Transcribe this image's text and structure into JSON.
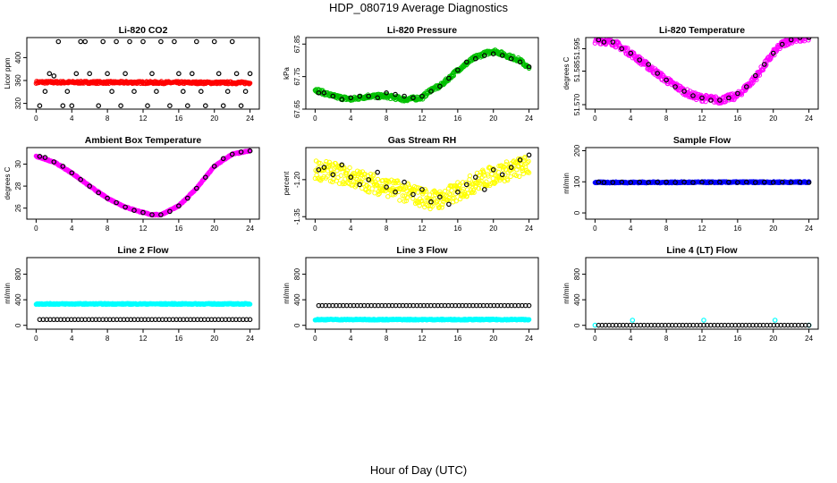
{
  "title": "HDP_080719  Average Diagnostics",
  "xlabel": "Hour of Day (UTC)",
  "x_ticks": [
    "0",
    "4",
    "8",
    "12",
    "16",
    "20",
    "24"
  ],
  "colors": {
    "primary_points": "#000000",
    "co2": "#ff0000",
    "pressure": "#00c000",
    "li820_temp": "#ff00ff",
    "box_temp": "#ff00ff",
    "rh": "#ffff00",
    "sample_flow": "#0000ff",
    "line_flow": "#00ffff"
  },
  "chart_data": [
    {
      "type": "scatter",
      "title": "Li-820 CO2",
      "ylabel": "Licor ppm",
      "xlim": [
        0,
        24
      ],
      "ylim": [
        310,
        435
      ],
      "yticks": [
        320,
        360,
        400
      ],
      "ytick_labels": [
        "320",
        "360",
        "400"
      ],
      "series": [
        {
          "color": "red",
          "style": "dense",
          "x": [
            0,
            24
          ],
          "y": [
            357,
            356
          ],
          "jitter": 2
        },
        {
          "color": "black",
          "style": "sparse",
          "x": [
            0.4,
            1,
            1.5,
            2,
            2.5,
            3,
            3.5,
            4,
            4.5,
            5,
            5.5,
            6,
            7,
            7.5,
            8,
            8.5,
            9,
            9.5,
            10,
            10.5,
            11,
            12,
            12.5,
            13,
            13.5,
            14,
            15,
            15.5,
            16,
            16.5,
            17,
            17.5,
            18,
            18.5,
            19,
            20,
            20.5,
            21,
            21.5,
            22,
            22.5,
            23,
            23.5,
            24
          ],
          "y": [
            316,
            341,
            372,
            368,
            428,
            316,
            341,
            316,
            372,
            428,
            428,
            372,
            316,
            428,
            372,
            341,
            428,
            316,
            372,
            428,
            341,
            428,
            316,
            372,
            341,
            428,
            316,
            428,
            372,
            341,
            316,
            372,
            428,
            341,
            316,
            428,
            372,
            316,
            341,
            428,
            372,
            316,
            341,
            372
          ]
        }
      ]
    },
    {
      "type": "scatter",
      "title": "Li-820 Pressure",
      "ylabel": "kPa",
      "xlim": [
        0,
        24
      ],
      "ylim": [
        67.65,
        67.87
      ],
      "yticks": [
        67.65,
        67.75,
        67.85
      ],
      "ytick_labels": [
        "67.65",
        "67.75",
        "67.85"
      ],
      "series": [
        {
          "color": "green",
          "style": "dense",
          "x": [
            0,
            2,
            4,
            6,
            8,
            10,
            12,
            13,
            14,
            16,
            18,
            19,
            20,
            21,
            22,
            23,
            24
          ],
          "y": [
            67.71,
            67.69,
            67.68,
            67.69,
            67.69,
            67.68,
            67.685,
            67.71,
            67.72,
            67.77,
            67.81,
            67.82,
            67.83,
            67.82,
            67.81,
            67.8,
            67.775
          ],
          "jitter": 0.006
        },
        {
          "color": "black",
          "style": "sparse",
          "x": [
            0.4,
            1,
            2,
            3,
            4,
            5,
            6,
            7,
            8,
            9,
            10,
            11,
            12,
            13,
            14,
            15,
            16,
            17,
            18,
            19,
            20,
            21,
            22,
            23,
            24
          ],
          "y": [
            67.7,
            67.7,
            67.69,
            67.68,
            67.685,
            67.69,
            67.69,
            67.685,
            67.7,
            67.695,
            67.69,
            67.685,
            67.69,
            67.705,
            67.72,
            67.745,
            67.77,
            67.795,
            67.805,
            67.815,
            67.82,
            67.815,
            67.805,
            67.795,
            67.78
          ]
        }
      ]
    },
    {
      "type": "scatter",
      "title": "Li-820 Temperature",
      "ylabel": "degrees C",
      "xlim": [
        0,
        24
      ],
      "ylim": [
        51.568,
        51.6
      ],
      "yticks": [
        51.57,
        51.585,
        51.595
      ],
      "ytick_labels": [
        "51.570",
        "51.585",
        "51.595"
      ],
      "series": [
        {
          "color": "magenta",
          "style": "dense",
          "x": [
            0,
            2,
            4,
            6,
            8,
            10,
            11,
            12,
            14,
            16,
            18,
            20,
            21,
            22,
            24
          ],
          "y": [
            51.599,
            51.598,
            51.593,
            51.587,
            51.581,
            51.576,
            51.574,
            51.573,
            51.572,
            51.574,
            51.582,
            51.593,
            51.597,
            51.599,
            51.6
          ],
          "jitter": 0.0015
        },
        {
          "color": "black",
          "style": "sparse",
          "x": [
            0.4,
            1,
            2,
            3,
            4,
            5,
            6,
            7,
            8,
            9,
            10,
            11,
            12,
            13,
            14,
            15,
            16,
            17,
            18,
            19,
            20,
            21,
            22,
            23,
            24
          ],
          "y": [
            51.599,
            51.598,
            51.598,
            51.595,
            51.593,
            51.59,
            51.588,
            51.584,
            51.581,
            51.578,
            51.576,
            51.574,
            51.573,
            51.572,
            51.572,
            51.573,
            51.575,
            51.578,
            51.583,
            51.588,
            51.593,
            51.597,
            51.599,
            51.6,
            51.6
          ]
        }
      ]
    },
    {
      "type": "scatter",
      "title": "Ambient Box Temperature",
      "ylabel": "degrees C",
      "xlim": [
        0,
        24
      ],
      "ylim": [
        25,
        31.5
      ],
      "yticks": [
        26,
        28,
        30
      ],
      "ytick_labels": [
        "26",
        "28",
        "30"
      ],
      "series": [
        {
          "color": "magenta",
          "style": "dense",
          "x": [
            0,
            2,
            4,
            6,
            8,
            10,
            12,
            13,
            14,
            16,
            18,
            20,
            22,
            24
          ],
          "y": [
            30.7,
            30.2,
            29.2,
            28.0,
            26.9,
            26.1,
            25.6,
            25.4,
            25.4,
            26.2,
            27.8,
            29.8,
            30.9,
            31.2
          ],
          "jitter": 0.05
        },
        {
          "color": "black",
          "style": "sparse",
          "x": [
            0.4,
            1,
            2,
            3,
            4,
            5,
            6,
            7,
            8,
            9,
            10,
            11,
            12,
            13,
            14,
            15,
            16,
            17,
            18,
            19,
            20,
            21,
            22,
            23,
            24
          ],
          "y": [
            30.7,
            30.6,
            30.2,
            29.8,
            29.2,
            28.6,
            28.0,
            27.4,
            26.9,
            26.5,
            26.1,
            25.8,
            25.6,
            25.4,
            25.4,
            25.7,
            26.2,
            26.9,
            27.8,
            28.8,
            29.8,
            30.5,
            30.9,
            31.1,
            31.2
          ]
        }
      ]
    },
    {
      "type": "scatter",
      "title": "Gas Stream RH",
      "ylabel": "percent",
      "xlim": [
        0,
        24
      ],
      "ylim": [
        -1.36,
        -1.07
      ],
      "yticks": [
        -1.35,
        -1.2
      ],
      "ytick_labels": [
        "-1.35",
        "-1.20"
      ],
      "series": [
        {
          "color": "yellow",
          "style": "dense",
          "x": [
            0,
            2,
            4,
            6,
            8,
            10,
            12,
            13,
            14,
            16,
            18,
            20,
            22,
            24
          ],
          "y": [
            -1.16,
            -1.17,
            -1.19,
            -1.21,
            -1.23,
            -1.25,
            -1.27,
            -1.28,
            -1.28,
            -1.25,
            -1.21,
            -1.18,
            -1.16,
            -1.14
          ],
          "jitter": 0.04
        },
        {
          "color": "black",
          "style": "sparse",
          "x": [
            0.4,
            1,
            2,
            3,
            4,
            5,
            6,
            7,
            8,
            9,
            10,
            11,
            12,
            13,
            14,
            15,
            16,
            17,
            18,
            19,
            20,
            21,
            22,
            23,
            24
          ],
          "y": [
            -1.16,
            -1.15,
            -1.18,
            -1.14,
            -1.19,
            -1.22,
            -1.2,
            -1.17,
            -1.23,
            -1.25,
            -1.21,
            -1.26,
            -1.24,
            -1.29,
            -1.27,
            -1.3,
            -1.25,
            -1.22,
            -1.19,
            -1.24,
            -1.16,
            -1.18,
            -1.15,
            -1.12,
            -1.1
          ]
        }
      ]
    },
    {
      "type": "scatter",
      "title": "Sample Flow",
      "ylabel": "ml/min",
      "xlim": [
        0,
        24
      ],
      "ylim": [
        -20,
        210
      ],
      "yticks": [
        0,
        100,
        200
      ],
      "ytick_labels": [
        "0",
        "100",
        "200"
      ],
      "series": [
        {
          "color": "blue",
          "style": "dense",
          "x": [
            0,
            24
          ],
          "y": [
            98,
            99
          ],
          "jitter": 2
        },
        {
          "color": "black",
          "style": "sparse",
          "x": [
            0.4,
            1,
            2,
            3,
            4,
            5,
            6,
            7,
            8,
            9,
            10,
            11,
            12,
            13,
            14,
            15,
            16,
            17,
            18,
            19,
            20,
            21,
            22,
            23,
            24
          ],
          "y": [
            99,
            98,
            98,
            99,
            98,
            99,
            98,
            99,
            99,
            98,
            99,
            98,
            99,
            98,
            99,
            99,
            98,
            99,
            98,
            99,
            98,
            99,
            98,
            99,
            98
          ]
        }
      ]
    },
    {
      "type": "scatter",
      "title": "Line 2 Flow",
      "ylabel": "ml/min",
      "xlim": [
        0,
        24
      ],
      "ylim": [
        -60,
        1060
      ],
      "yticks": [
        0,
        400,
        800
      ],
      "ytick_labels": [
        "0",
        "400",
        "800"
      ],
      "series": [
        {
          "color": "cyan",
          "style": "dense",
          "x": [
            0,
            24
          ],
          "y": [
            335,
            335
          ],
          "jitter": 8
        },
        {
          "color": "black",
          "style": "dense-sparse",
          "x": [
            0.4,
            24
          ],
          "y": [
            90,
            90
          ]
        }
      ]
    },
    {
      "type": "scatter",
      "title": "Line 3 Flow",
      "ylabel": "ml/min",
      "xlim": [
        0,
        24
      ],
      "ylim": [
        -60,
        1060
      ],
      "yticks": [
        0,
        400,
        800
      ],
      "ytick_labels": [
        "0",
        "400",
        "800"
      ],
      "series": [
        {
          "color": "cyan",
          "style": "dense",
          "x": [
            0,
            24
          ],
          "y": [
            90,
            90
          ],
          "jitter": 8
        },
        {
          "color": "black",
          "style": "dense-sparse",
          "x": [
            0.4,
            24
          ],
          "y": [
            310,
            310
          ]
        }
      ]
    },
    {
      "type": "scatter",
      "title": "Line 4 (LT) Flow",
      "ylabel": "ml/min",
      "xlim": [
        0,
        24
      ],
      "ylim": [
        -60,
        1060
      ],
      "yticks": [
        0,
        400,
        800
      ],
      "ytick_labels": [
        "0",
        "400",
        "800"
      ],
      "series": [
        {
          "color": "cyan",
          "style": "sparse",
          "x": [
            0,
            4.2,
            12.2,
            20.2,
            24
          ],
          "y": [
            2,
            80,
            80,
            80,
            2
          ]
        },
        {
          "color": "black",
          "style": "dense-sparse",
          "x": [
            0.4,
            24
          ],
          "y": [
            2,
            2
          ]
        }
      ]
    }
  ]
}
